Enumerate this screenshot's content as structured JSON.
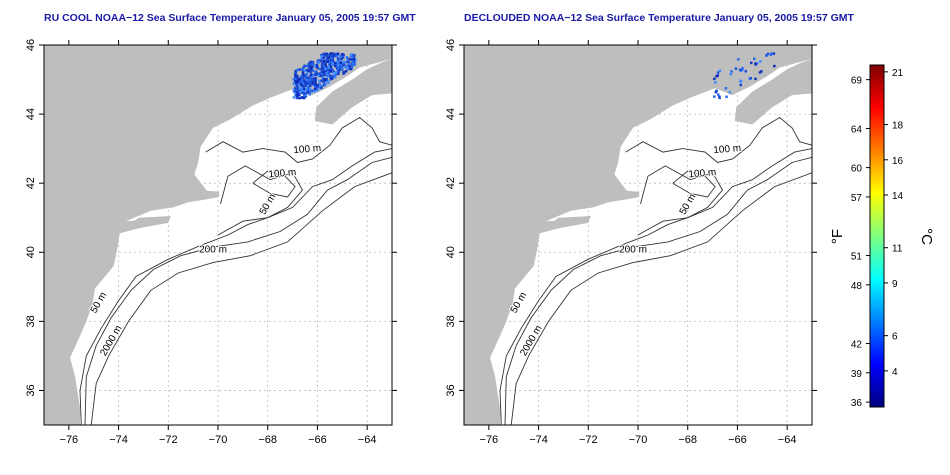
{
  "panels": [
    {
      "id": "left",
      "title": "RU COOL NOAA−12 Sea Surface Temperature January 05, 2005 19:57 GMT",
      "contour_labels": [
        "100 m",
        "100 m",
        "50 m",
        "200 m",
        "50 m",
        "2000 m"
      ]
    },
    {
      "id": "right",
      "title": "DECLOUDED NOAA−12 Sea Surface Temperature January 05, 2005 19:57 GMT",
      "contour_labels": [
        "100 m",
        "100 m",
        "50 m",
        "200 m",
        "50 m",
        "2000 m"
      ]
    }
  ],
  "axes": {
    "x_ticks": [
      "−76",
      "−74",
      "−72",
      "−70",
      "−68",
      "−66",
      "−64"
    ],
    "y_ticks": [
      "36",
      "38",
      "40",
      "42",
      "44",
      "46"
    ],
    "lon_range": [
      -77,
      -63
    ],
    "lat_range": [
      35,
      46
    ]
  },
  "colorbar": {
    "unit_f": "°F",
    "unit_c": "°C",
    "f_ticks": [
      "69",
      "64",
      "60",
      "57",
      "51",
      "48",
      "42",
      "39",
      "36"
    ],
    "c_ticks": [
      "21",
      "18",
      "16",
      "14",
      "11",
      "9",
      "6",
      "4"
    ],
    "colors": [
      "#00007f",
      "#0000ff",
      "#007fff",
      "#00ffff",
      "#7fff7f",
      "#ffff00",
      "#ff7f00",
      "#ff0000",
      "#7f0000"
    ]
  },
  "colors": {
    "land": "#bebebe",
    "sst_patch": "#1f4fd6",
    "title": "#1a1aa6"
  }
}
